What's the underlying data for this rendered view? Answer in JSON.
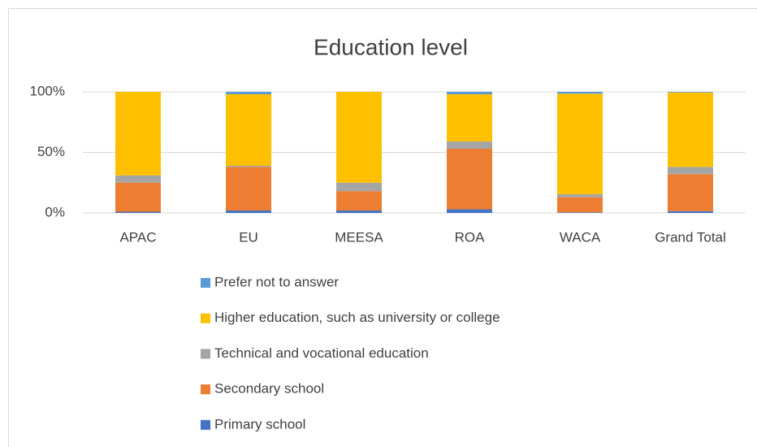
{
  "chart_data": {
    "type": "stacked_bar",
    "title": "Education level",
    "categories": [
      "APAC",
      "EU",
      "MEESA",
      "ROA",
      "WACA",
      "Grand Total"
    ],
    "series": [
      {
        "name": "Primary school",
        "color": "#4472c4",
        "values": [
          1,
          2,
          2,
          3,
          0.5,
          1.5
        ]
      },
      {
        "name": "Secondary school",
        "color": "#ed7d31",
        "values": [
          24,
          36,
          16,
          50,
          12.5,
          30.5
        ]
      },
      {
        "name": "Technical and vocational education",
        "color": "#a5a5a5",
        "values": [
          6,
          1,
          7,
          6,
          2.5,
          6
        ]
      },
      {
        "name": "Higher education, such as university or college",
        "color": "#ffc000",
        "values": [
          69,
          59,
          75,
          39,
          83,
          61.5
        ]
      },
      {
        "name": "Prefer not to answer",
        "color": "#5b9bd5",
        "values": [
          0,
          2,
          0,
          2,
          1.5,
          0.5
        ]
      }
    ],
    "ylim": [
      0,
      100
    ],
    "yticks": [
      {
        "value": 0,
        "label": "0%"
      },
      {
        "value": 50,
        "label": "50%"
      },
      {
        "value": 100,
        "label": "100%"
      }
    ],
    "grid": true
  }
}
